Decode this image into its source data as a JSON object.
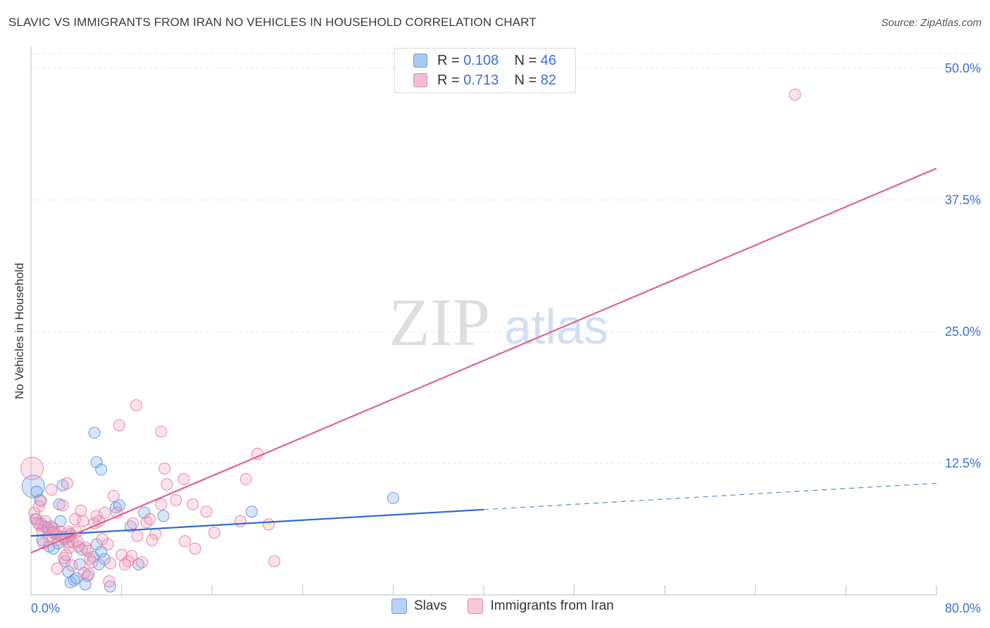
{
  "header": {
    "title": "SLAVIC VS IMMIGRANTS FROM IRAN NO VEHICLES IN HOUSEHOLD CORRELATION CHART",
    "source": "Source: ZipAtlas.com"
  },
  "watermark": {
    "zip": "ZIP",
    "atlas": "atlas"
  },
  "legend_top": [
    {
      "r_label": "R = ",
      "r_value": "0.108",
      "n_label": "N = ",
      "n_value": "46",
      "color": "#a9c8f2",
      "border": "#6f9fe0"
    },
    {
      "r_label": "R = ",
      "r_value": "0.713",
      "n_label": "N = ",
      "n_value": "82",
      "color": "#f7bcd0",
      "border": "#e88aa8"
    }
  ],
  "legend_bottom": [
    {
      "label": "Slavs",
      "color": "#b9d2f5",
      "border": "#6f9fe0"
    },
    {
      "label": "Immigrants from Iran",
      "color": "#f9c9d9",
      "border": "#e88aa8"
    }
  ],
  "colors": {
    "slavs_fill": "rgba(140,180,235,0.35)",
    "slavs_stroke": "#5b8fdc",
    "iran_fill": "rgba(245,160,190,0.30)",
    "iran_stroke": "#e9789c",
    "slavs_line": "#2a6bd1",
    "iran_line": "#e0638b",
    "tick_text": "#3a6fd8",
    "grid": "#e4e4e4"
  },
  "chart_data": {
    "type": "scatter",
    "title": "SLAVIC VS IMMIGRANTS FROM IRAN NO VEHICLES IN HOUSEHOLD CORRELATION CHART",
    "xlabel": "",
    "ylabel": "No Vehicles in Household",
    "xlim": [
      0,
      80
    ],
    "ylim": [
      0,
      52
    ],
    "x_tick_labels": [
      "0.0%",
      "80.0%"
    ],
    "y_ticks": [
      12.5,
      25.0,
      37.5,
      50.0
    ],
    "y_tick_labels": [
      "12.5%",
      "25.0%",
      "37.5%",
      "50.0%"
    ],
    "grid": true,
    "legend_position": "top-center",
    "series": [
      {
        "name": "Slavs",
        "r": 0.108,
        "n": 46,
        "trend": {
          "x0": 0,
          "y0": 5.6,
          "x1": 40,
          "y1": 8.1,
          "dashed_to_x": 80,
          "dashed_to_y": 10.6
        },
        "points": [
          [
            0.2,
            10.3
          ],
          [
            0.5,
            9.8
          ],
          [
            0.8,
            9.0
          ],
          [
            0.4,
            7.2
          ],
          [
            0.9,
            6.8
          ],
          [
            1.2,
            6.5
          ],
          [
            1.5,
            6.2
          ],
          [
            1.8,
            6.5
          ],
          [
            2.0,
            6.0
          ],
          [
            2.2,
            5.8
          ],
          [
            2.5,
            8.6
          ],
          [
            2.6,
            7.0
          ],
          [
            2.8,
            10.4
          ],
          [
            3.0,
            5.5
          ],
          [
            3.3,
            5.0
          ],
          [
            3.5,
            5.6
          ],
          [
            1.0,
            5.2
          ],
          [
            1.6,
            4.6
          ],
          [
            2.0,
            4.4
          ],
          [
            2.4,
            4.9
          ],
          [
            3.0,
            3.2
          ],
          [
            3.3,
            2.2
          ],
          [
            3.5,
            1.2
          ],
          [
            3.8,
            1.4
          ],
          [
            4.0,
            1.6
          ],
          [
            4.3,
            2.9
          ],
          [
            4.5,
            4.3
          ],
          [
            4.8,
            1.0
          ],
          [
            5.0,
            1.8
          ],
          [
            5.5,
            3.6
          ],
          [
            5.8,
            4.8
          ],
          [
            6.0,
            2.9
          ],
          [
            6.2,
            4.1
          ],
          [
            6.5,
            3.4
          ],
          [
            7.0,
            0.8
          ],
          [
            5.6,
            15.4
          ],
          [
            5.8,
            12.6
          ],
          [
            6.2,
            11.9
          ],
          [
            7.5,
            8.3
          ],
          [
            7.8,
            8.5
          ],
          [
            8.8,
            6.5
          ],
          [
            9.5,
            2.9
          ],
          [
            10.0,
            7.8
          ],
          [
            11.7,
            7.5
          ],
          [
            19.5,
            7.9
          ],
          [
            32.0,
            9.2
          ]
        ]
      },
      {
        "name": "Immigrants from Iran",
        "r": 0.713,
        "n": 82,
        "trend": {
          "x0": 0,
          "y0": 4.0,
          "x1": 80,
          "y1": 40.5
        },
        "points": [
          [
            0.1,
            12.0
          ],
          [
            0.3,
            7.8
          ],
          [
            0.5,
            7.2
          ],
          [
            0.7,
            8.4
          ],
          [
            0.8,
            6.6
          ],
          [
            1.0,
            6.1
          ],
          [
            1.3,
            7.0
          ],
          [
            1.5,
            6.4
          ],
          [
            1.6,
            5.5
          ],
          [
            1.8,
            10.0
          ],
          [
            2.0,
            6.3
          ],
          [
            2.2,
            5.8
          ],
          [
            2.4,
            5.2
          ],
          [
            2.6,
            6.0
          ],
          [
            2.8,
            8.5
          ],
          [
            3.0,
            5.3
          ],
          [
            3.2,
            10.6
          ],
          [
            3.3,
            6.0
          ],
          [
            3.4,
            4.5
          ],
          [
            3.5,
            5.8
          ],
          [
            3.7,
            5.0
          ],
          [
            3.9,
            7.2
          ],
          [
            4.0,
            6.0
          ],
          [
            4.2,
            4.6
          ],
          [
            4.4,
            8.0
          ],
          [
            4.6,
            7.0
          ],
          [
            4.8,
            4.5
          ],
          [
            5.0,
            4.2
          ],
          [
            5.2,
            3.4
          ],
          [
            5.4,
            3.1
          ],
          [
            5.6,
            6.8
          ],
          [
            5.8,
            7.5
          ],
          [
            6.0,
            7.0
          ],
          [
            6.3,
            5.3
          ],
          [
            6.5,
            7.8
          ],
          [
            6.8,
            4.8
          ],
          [
            7.0,
            3.0
          ],
          [
            7.3,
            9.4
          ],
          [
            7.6,
            7.8
          ],
          [
            8.0,
            3.8
          ],
          [
            8.3,
            2.9
          ],
          [
            8.6,
            3.2
          ],
          [
            9.0,
            6.8
          ],
          [
            9.4,
            5.6
          ],
          [
            9.8,
            3.1
          ],
          [
            10.2,
            6.9
          ],
          [
            10.5,
            7.2
          ],
          [
            11.0,
            5.8
          ],
          [
            11.5,
            8.6
          ],
          [
            12.0,
            10.5
          ],
          [
            12.8,
            9.0
          ],
          [
            13.5,
            11.0
          ],
          [
            14.3,
            8.6
          ],
          [
            15.5,
            7.9
          ],
          [
            16.2,
            5.9
          ],
          [
            18.5,
            7.0
          ],
          [
            19.0,
            11.0
          ],
          [
            20.0,
            13.4
          ],
          [
            21.0,
            6.7
          ],
          [
            21.5,
            3.2
          ],
          [
            9.3,
            18.0
          ],
          [
            7.8,
            16.1
          ],
          [
            11.5,
            15.5
          ],
          [
            11.8,
            12.0
          ],
          [
            14.5,
            4.4
          ],
          [
            13.6,
            5.1
          ],
          [
            0.6,
            6.8
          ],
          [
            1.1,
            4.9
          ],
          [
            2.3,
            2.5
          ],
          [
            2.9,
            3.5
          ],
          [
            3.6,
            2.8
          ],
          [
            4.7,
            2.1
          ],
          [
            5.1,
            2.0
          ],
          [
            6.9,
            1.3
          ],
          [
            8.9,
            3.7
          ],
          [
            0.9,
            8.9
          ],
          [
            1.9,
            5.9
          ],
          [
            2.7,
            5.5
          ],
          [
            3.1,
            3.8
          ],
          [
            4.1,
            5.1
          ],
          [
            10.7,
            5.2
          ],
          [
            67.5,
            47.5
          ]
        ]
      }
    ]
  }
}
